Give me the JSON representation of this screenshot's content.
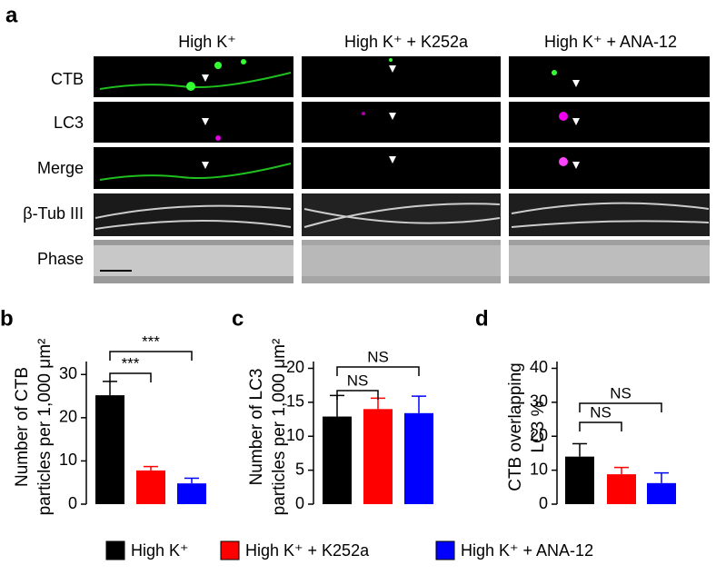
{
  "panel_a": {
    "label": "a",
    "columns": [
      "High K⁺",
      "High K⁺ + K252a",
      "High K⁺ + ANA-12"
    ],
    "rows": [
      "CTB",
      "LC3",
      "Merge",
      "β-Tub III",
      "Phase"
    ]
  },
  "legend": [
    {
      "label": "High K⁺",
      "color": "#000000"
    },
    {
      "label": "High K⁺ + K252a",
      "color": "#ff0000"
    },
    {
      "label": "High K⁺ + ANA-12",
      "color": "#0000ff"
    }
  ],
  "chart_data": [
    {
      "type": "bar",
      "panel": "b",
      "ylabel": [
        "Number of CTB",
        "particles per 1,000 μm²"
      ],
      "values": [
        25.2,
        7.8,
        4.8
      ],
      "errors": [
        3.2,
        0.9,
        1.2
      ],
      "ylim": [
        0,
        33
      ],
      "yticks": [
        0,
        10,
        20,
        30
      ],
      "annotations": [
        "***",
        "***"
      ]
    },
    {
      "type": "bar",
      "panel": "c",
      "ylabel": [
        "Number of LC3",
        "particles per 1,000 μm²"
      ],
      "values": [
        12.9,
        14,
        13.4
      ],
      "errors": [
        3.1,
        1.6,
        2.5
      ],
      "ylim": [
        0,
        21
      ],
      "yticks": [
        0,
        5,
        10,
        15,
        20
      ],
      "annotations": [
        "NS",
        "NS"
      ]
    },
    {
      "type": "bar",
      "panel": "d",
      "ylabel": [
        "CTB overlapping",
        "LC3 %"
      ],
      "values": [
        14,
        8.8,
        6.2
      ],
      "errors": [
        3.8,
        2,
        3
      ],
      "ylim": [
        0,
        42
      ],
      "yticks": [
        0,
        10,
        20,
        30,
        40
      ],
      "annotations": [
        "NS",
        "NS"
      ]
    }
  ]
}
